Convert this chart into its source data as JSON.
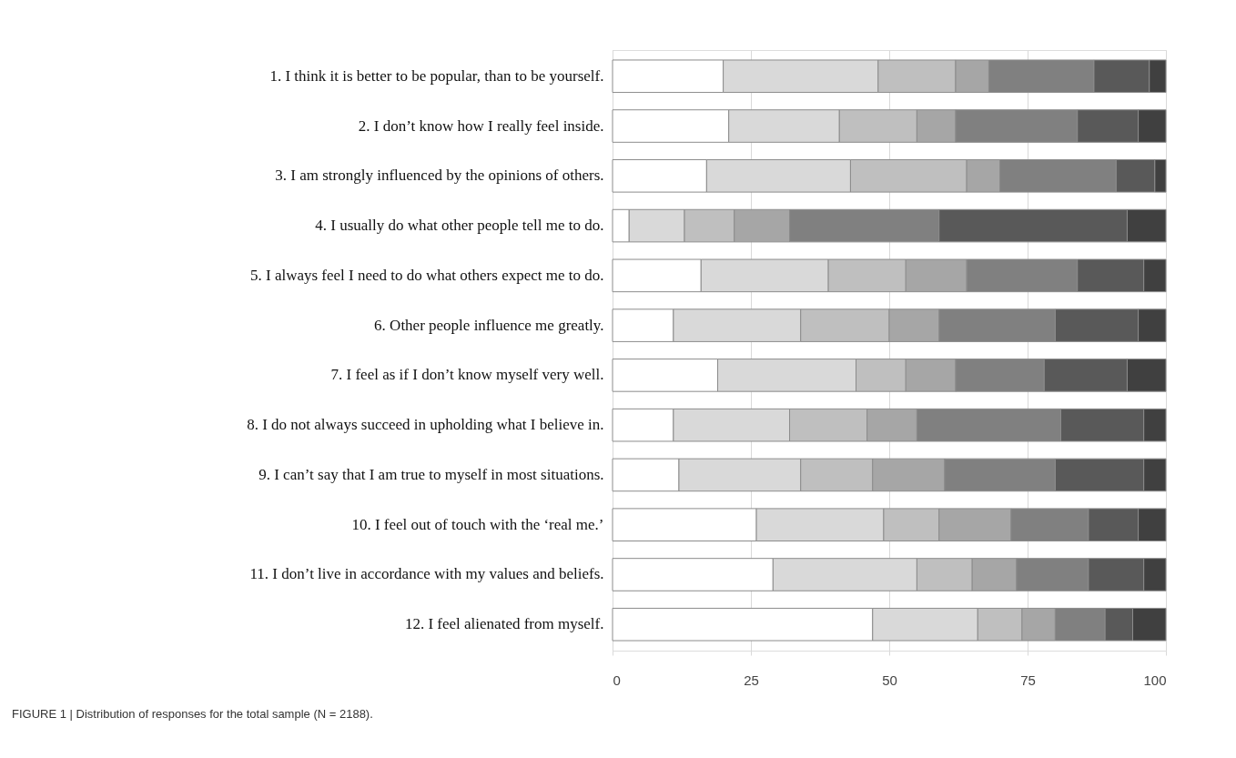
{
  "chart_data": {
    "type": "bar",
    "orientation": "horizontal",
    "stacked": true,
    "categories": [
      "1. I think it is better to be popular, than to be yourself.",
      "2. I don’t know how I really feel inside.",
      "3. I am strongly influenced by the opinions of others.",
      "4. I usually do what other people tell me to do.",
      "5. I always feel I need to do what others expect me to do.",
      "6. Other people influence me greatly.",
      "7. I feel as if I don’t know myself very well.",
      "8. I do not always succeed in upholding what I believe in.",
      "9. I can’t say that I am true to myself in most situations.",
      "10. I feel out of touch with the ‘real me.’",
      "11. I don’t live in accordance with my values and beliefs.",
      "12. I feel alienated from myself."
    ],
    "series": [
      {
        "color": "#ffffff",
        "values": [
          20,
          21,
          17,
          3,
          16,
          11,
          19,
          11,
          12,
          26,
          29,
          47
        ]
      },
      {
        "color": "#d9d9d9",
        "values": [
          28,
          20,
          26,
          10,
          23,
          23,
          25,
          21,
          22,
          23,
          26,
          19
        ]
      },
      {
        "color": "#bfbfbf",
        "values": [
          14,
          14,
          21,
          9,
          14,
          16,
          9,
          14,
          13,
          10,
          10,
          8
        ]
      },
      {
        "color": "#a6a6a6",
        "values": [
          6,
          7,
          6,
          10,
          11,
          9,
          9,
          9,
          13,
          13,
          8,
          6
        ]
      },
      {
        "color": "#808080",
        "values": [
          19,
          22,
          21,
          27,
          20,
          21,
          16,
          26,
          20,
          14,
          13,
          9
        ]
      },
      {
        "color": "#595959",
        "values": [
          10,
          11,
          7,
          34,
          12,
          15,
          15,
          15,
          16,
          9,
          10,
          5
        ]
      },
      {
        "color": "#404040",
        "values": [
          3,
          5,
          2,
          7,
          4,
          5,
          7,
          4,
          4,
          5,
          4,
          6
        ]
      }
    ],
    "xlim": [
      0,
      100
    ],
    "xticks": [
      0,
      25,
      50,
      75,
      100
    ],
    "grid": "x",
    "legend": false,
    "annotations": [
      "FIGURE 1 | Distribution of responses for the total sample (N = 2188)."
    ]
  }
}
